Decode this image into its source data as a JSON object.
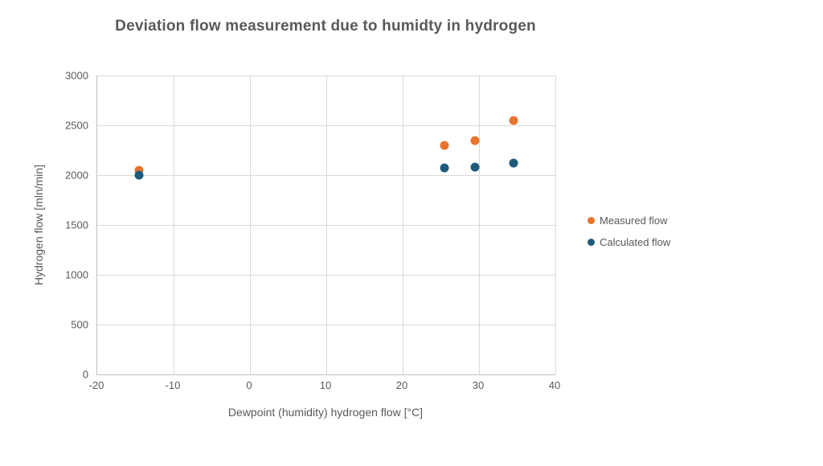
{
  "chart_data": {
    "type": "scatter",
    "title": "Deviation flow measurement due to humidty in hydrogen",
    "xlabel": "Dewpoint (humidity) hydrogen flow [°C]",
    "ylabel": "Hydrogen flow [mln/min]",
    "xlim": [
      -20,
      40
    ],
    "ylim": [
      0,
      3000
    ],
    "xticks": [
      -20,
      -10,
      0,
      10,
      20,
      30,
      40
    ],
    "yticks": [
      0,
      500,
      1000,
      1500,
      2000,
      2500,
      3000
    ],
    "grid": true,
    "legend_position": "right-middle",
    "series": [
      {
        "name": "Measured flow",
        "color": "#E8732C",
        "points": [
          {
            "x": -14.5,
            "y": 2050
          },
          {
            "x": 25.5,
            "y": 2300
          },
          {
            "x": 29.5,
            "y": 2350
          },
          {
            "x": 34.5,
            "y": 2550
          }
        ]
      },
      {
        "name": "Calculated flow",
        "color": "#1D5B7C",
        "points": [
          {
            "x": -14.5,
            "y": 2000
          },
          {
            "x": 25.5,
            "y": 2070
          },
          {
            "x": 29.5,
            "y": 2080
          },
          {
            "x": 34.5,
            "y": 2120
          }
        ]
      }
    ],
    "colors": {
      "gridline": "#D9D9D9",
      "axis_line": "#BFBFBF",
      "text": "#595959"
    }
  }
}
